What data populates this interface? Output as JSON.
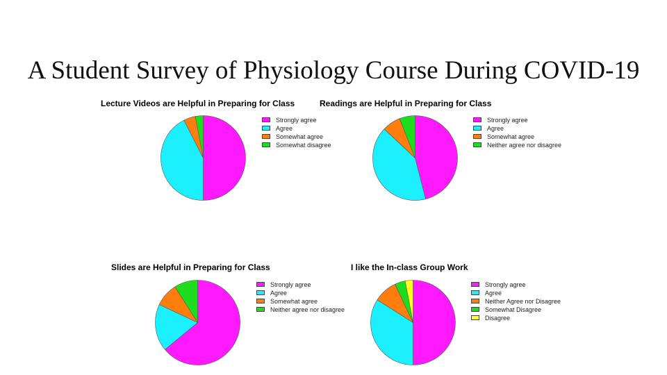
{
  "slide": {
    "title": "A Student Survey of Physiology Course During COVID-19"
  },
  "colors": {
    "strongly_agree": "#ff19ff",
    "agree": "#1cf0ff",
    "somewhat_agree": "#ff7e0d",
    "neutral": "#1edc1e",
    "disagree": "#ffff1e"
  },
  "chart_data": [
    {
      "type": "pie",
      "title": "Lecture Videos are Helpful in Preparing for Class",
      "categories": [
        "Strongly agree",
        "Agree",
        "Somewhat agree",
        "Somewhat disagree"
      ],
      "values": [
        50,
        42.5,
        4.5,
        3
      ],
      "colors": [
        "#ff19ff",
        "#1cf0ff",
        "#ff7e0d",
        "#1edc1e"
      ],
      "legend": "right"
    },
    {
      "type": "pie",
      "title": "Readings are Helpful in Preparing for Class",
      "categories": [
        "Strongly agree",
        "Agree",
        "Somewhat agree",
        "Neither agree nor disagree"
      ],
      "values": [
        46,
        41,
        7,
        6
      ],
      "colors": [
        "#ff19ff",
        "#1cf0ff",
        "#ff7e0d",
        "#1edc1e"
      ],
      "legend": "right"
    },
    {
      "type": "pie",
      "title": "Slides are Helpful in Preparing for Class",
      "categories": [
        "Strongly agree",
        "Agree",
        "Somewhat agree",
        "Neither agree nor disagree"
      ],
      "values": [
        64,
        18,
        9,
        9
      ],
      "colors": [
        "#ff19ff",
        "#1cf0ff",
        "#ff7e0d",
        "#1edc1e"
      ],
      "legend": "right"
    },
    {
      "type": "pie",
      "title": "I like the In-class Group Work",
      "categories": [
        "Strongly agree",
        "Agree",
        "Neither Agree nor Disagree",
        "Somewhat Disagree",
        "Disagree"
      ],
      "values": [
        50,
        34,
        9,
        4,
        3
      ],
      "colors": [
        "#ff19ff",
        "#1cf0ff",
        "#ff7e0d",
        "#1edc1e",
        "#ffff1e"
      ],
      "legend": "right"
    }
  ]
}
